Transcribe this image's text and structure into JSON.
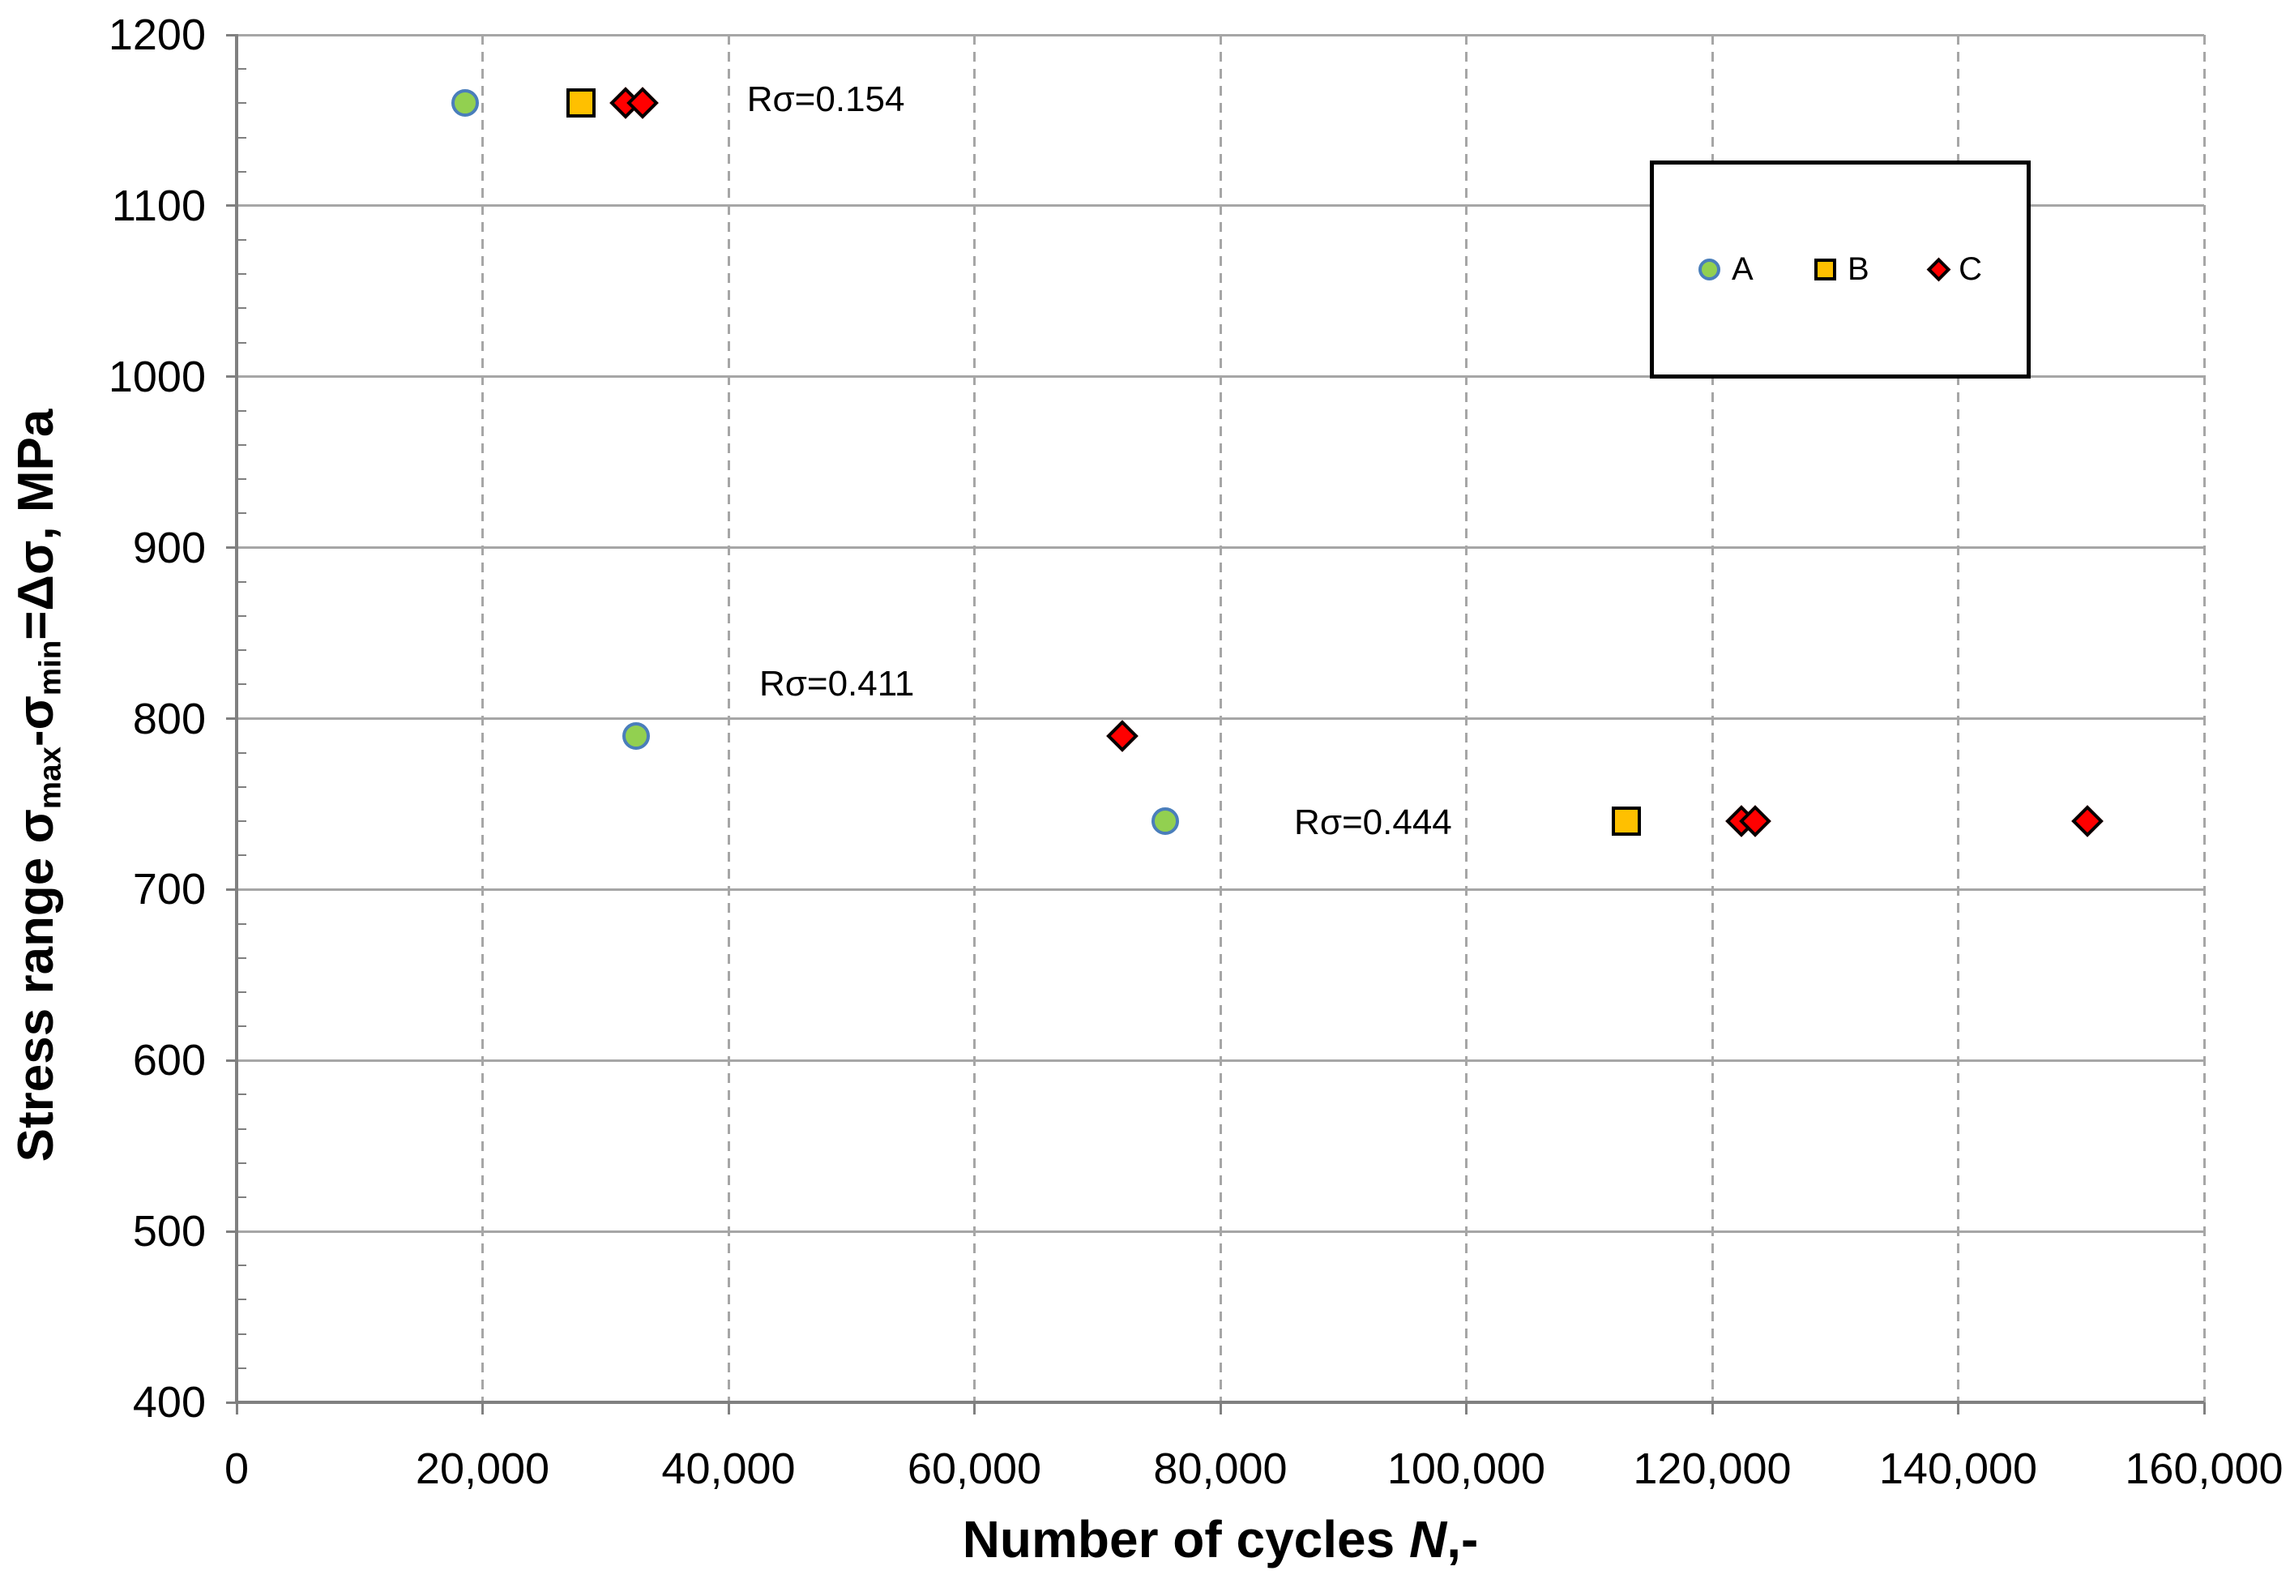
{
  "chart_data": {
    "type": "scatter",
    "title": "",
    "x_axis": {
      "title_pre": "Number of cycles ",
      "title_var": "N",
      "title_post": ",-",
      "min": 0,
      "max": 160000,
      "tick_step": 20000,
      "ticks": [
        0,
        20000,
        40000,
        60000,
        80000,
        100000,
        120000,
        140000,
        160000
      ],
      "tick_labels": [
        "0",
        "20,000",
        "40,000",
        "60,000",
        "80,000",
        "100,000",
        "120,000",
        "140,000",
        "160,000"
      ],
      "gridlines": "dashed"
    },
    "y_axis": {
      "title_pre": "Stress range σ",
      "title_sub1": "max",
      "title_mid": "-σ",
      "title_sub2": "min",
      "title_post": "=Δσ, MPa",
      "min": 400,
      "max": 1200,
      "tick_step": 100,
      "minor_tick_step": 20,
      "ticks": [
        400,
        500,
        600,
        700,
        800,
        900,
        1000,
        1100,
        1200
      ],
      "tick_labels": [
        "400",
        "500",
        "600",
        "700",
        "800",
        "900",
        "1000",
        "1100",
        "1200"
      ],
      "gridlines": "solid"
    },
    "series": [
      {
        "name": "A",
        "marker": "circle",
        "fill": "#92D050",
        "stroke": "#4A7EBB",
        "points": [
          [
            18600,
            1160
          ],
          [
            32500,
            790
          ],
          [
            75500,
            740
          ]
        ]
      },
      {
        "name": "B",
        "marker": "square",
        "fill": "#FFC000",
        "stroke": "#000000",
        "points": [
          [
            28000,
            1160
          ],
          [
            113000,
            740
          ]
        ]
      },
      {
        "name": "C",
        "marker": "diamond",
        "fill": "#FF0000",
        "stroke": "#000000",
        "points": [
          [
            31600,
            1160
          ],
          [
            33000,
            1160
          ],
          [
            72000,
            790
          ],
          [
            122400,
            740
          ],
          [
            123500,
            740
          ],
          [
            150500,
            740
          ]
        ]
      }
    ],
    "annotations": [
      {
        "text": "Rσ=0.154",
        "n": 41500,
        "mpa": 1162
      },
      {
        "text": "Rσ=0.411",
        "n": 42500,
        "mpa": 820
      },
      {
        "text": "Rσ=0.444",
        "n": 86000,
        "mpa": 739
      }
    ],
    "legend": {
      "position": "top-right",
      "items": [
        {
          "label": "A"
        },
        {
          "label": "B"
        },
        {
          "label": "C"
        }
      ]
    },
    "colors": {
      "grid": "#A6A6A6",
      "axis": "#808080",
      "text": "#000000",
      "background": "#FFFFFF"
    }
  }
}
